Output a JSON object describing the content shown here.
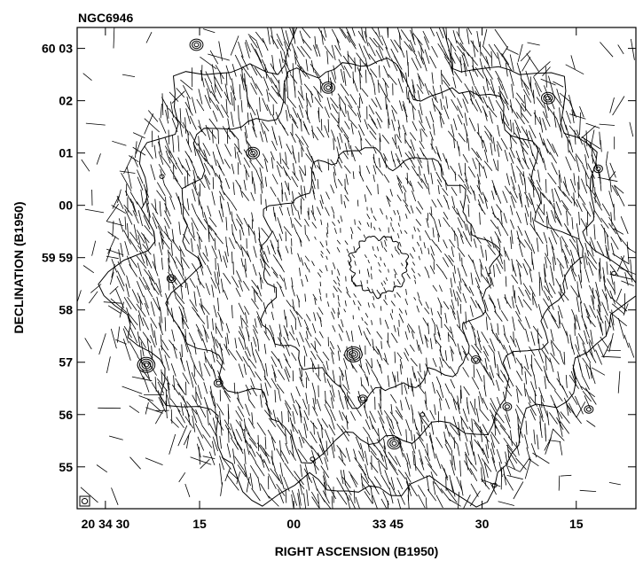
{
  "chart_data": {
    "type": "contour",
    "title": "NGC6946",
    "xlabel": "RIGHT ASCENSION (B1950)",
    "ylabel": "DECLINATION (B1950)",
    "x_ticks": [
      {
        "label": "20 34 30",
        "ra_sec_offset": 45
      },
      {
        "label": "15",
        "ra_sec_offset": 30
      },
      {
        "label": "00",
        "ra_sec_offset": 15
      },
      {
        "label": "33 45",
        "ra_sec_offset": 0
      },
      {
        "label": "30",
        "ra_sec_offset": -15
      },
      {
        "label": "15",
        "ra_sec_offset": -30
      }
    ],
    "y_ticks": [
      {
        "label": "60 03",
        "dec_arcmin": 3
      },
      {
        "label": "02",
        "dec_arcmin": 2
      },
      {
        "label": "01",
        "dec_arcmin": 1
      },
      {
        "label": "00",
        "dec_arcmin": 0
      },
      {
        "label": "59 59",
        "dec_arcmin": -1
      },
      {
        "label": "58",
        "dec_arcmin": -2
      },
      {
        "label": "57",
        "dec_arcmin": -3
      },
      {
        "label": "56",
        "dec_arcmin": -4
      },
      {
        "label": "55",
        "dec_arcmin": -5
      }
    ],
    "x_range_sec": [
      49.5,
      -39.5
    ],
    "y_range_arcmin": [
      -5.8,
      3.4
    ],
    "compact_sources": [
      {
        "ra": 30.5,
        "dec": 3.07,
        "levels": 3
      },
      {
        "ra": 9.5,
        "dec": 2.25,
        "levels": 3
      },
      {
        "ra": -25.5,
        "dec": 2.05,
        "levels": 3
      },
      {
        "ra": 21.5,
        "dec": 1.0,
        "levels": 3
      },
      {
        "ra": 34.5,
        "dec": -1.4,
        "levels": 2
      },
      {
        "ra": 38.5,
        "dec": -3.05,
        "levels": 4
      },
      {
        "ra": 5.5,
        "dec": -2.85,
        "levels": 4
      },
      {
        "ra": -14.0,
        "dec": -2.95,
        "levels": 2
      },
      {
        "ra": -1.0,
        "dec": -4.55,
        "levels": 3
      },
      {
        "ra": 4.0,
        "dec": -3.7,
        "levels": 2
      },
      {
        "ra": -19.0,
        "dec": -3.85,
        "levels": 2
      },
      {
        "ra": -32.0,
        "dec": -3.9,
        "levels": 2
      },
      {
        "ra": 27.0,
        "dec": -3.4,
        "levels": 2
      },
      {
        "ra": -33.5,
        "dec": 0.7,
        "levels": 2
      },
      {
        "ra": 36.0,
        "dec": 0.55,
        "levels": 1
      },
      {
        "ra": -36.0,
        "dec": -1.3,
        "levels": 1
      },
      {
        "ra": 12.0,
        "dec": -4.85,
        "levels": 1
      },
      {
        "ra": -17.0,
        "dec": -5.35,
        "levels": 1
      },
      {
        "ra": -5.5,
        "dec": -4.0,
        "levels": 1
      }
    ],
    "galaxy_contours": [
      {
        "level": 1,
        "rx": 38.5,
        "ry": 4.55,
        "cra": 3.0,
        "cdec": -1.05
      },
      {
        "level": 2,
        "rx": 30.5,
        "ry": 3.6,
        "cra": 3.0,
        "cdec": -1.0
      },
      {
        "level": 3,
        "rx": 18.0,
        "ry": 2.3,
        "cra": 2.0,
        "cdec": -1.3
      },
      {
        "level": 4,
        "rx": 4.5,
        "ry": 0.55,
        "cra": 1.5,
        "cdec": -1.15
      }
    ],
    "vectors": {
      "extent_rx": 40,
      "extent_ry": 4.8,
      "center_ra": 3.0,
      "center_dec": -1.1,
      "typical_angle_deg": 70
    },
    "beam": {
      "ra": 47.5,
      "dec": -5.55
    },
    "grid": false,
    "legend": null
  }
}
